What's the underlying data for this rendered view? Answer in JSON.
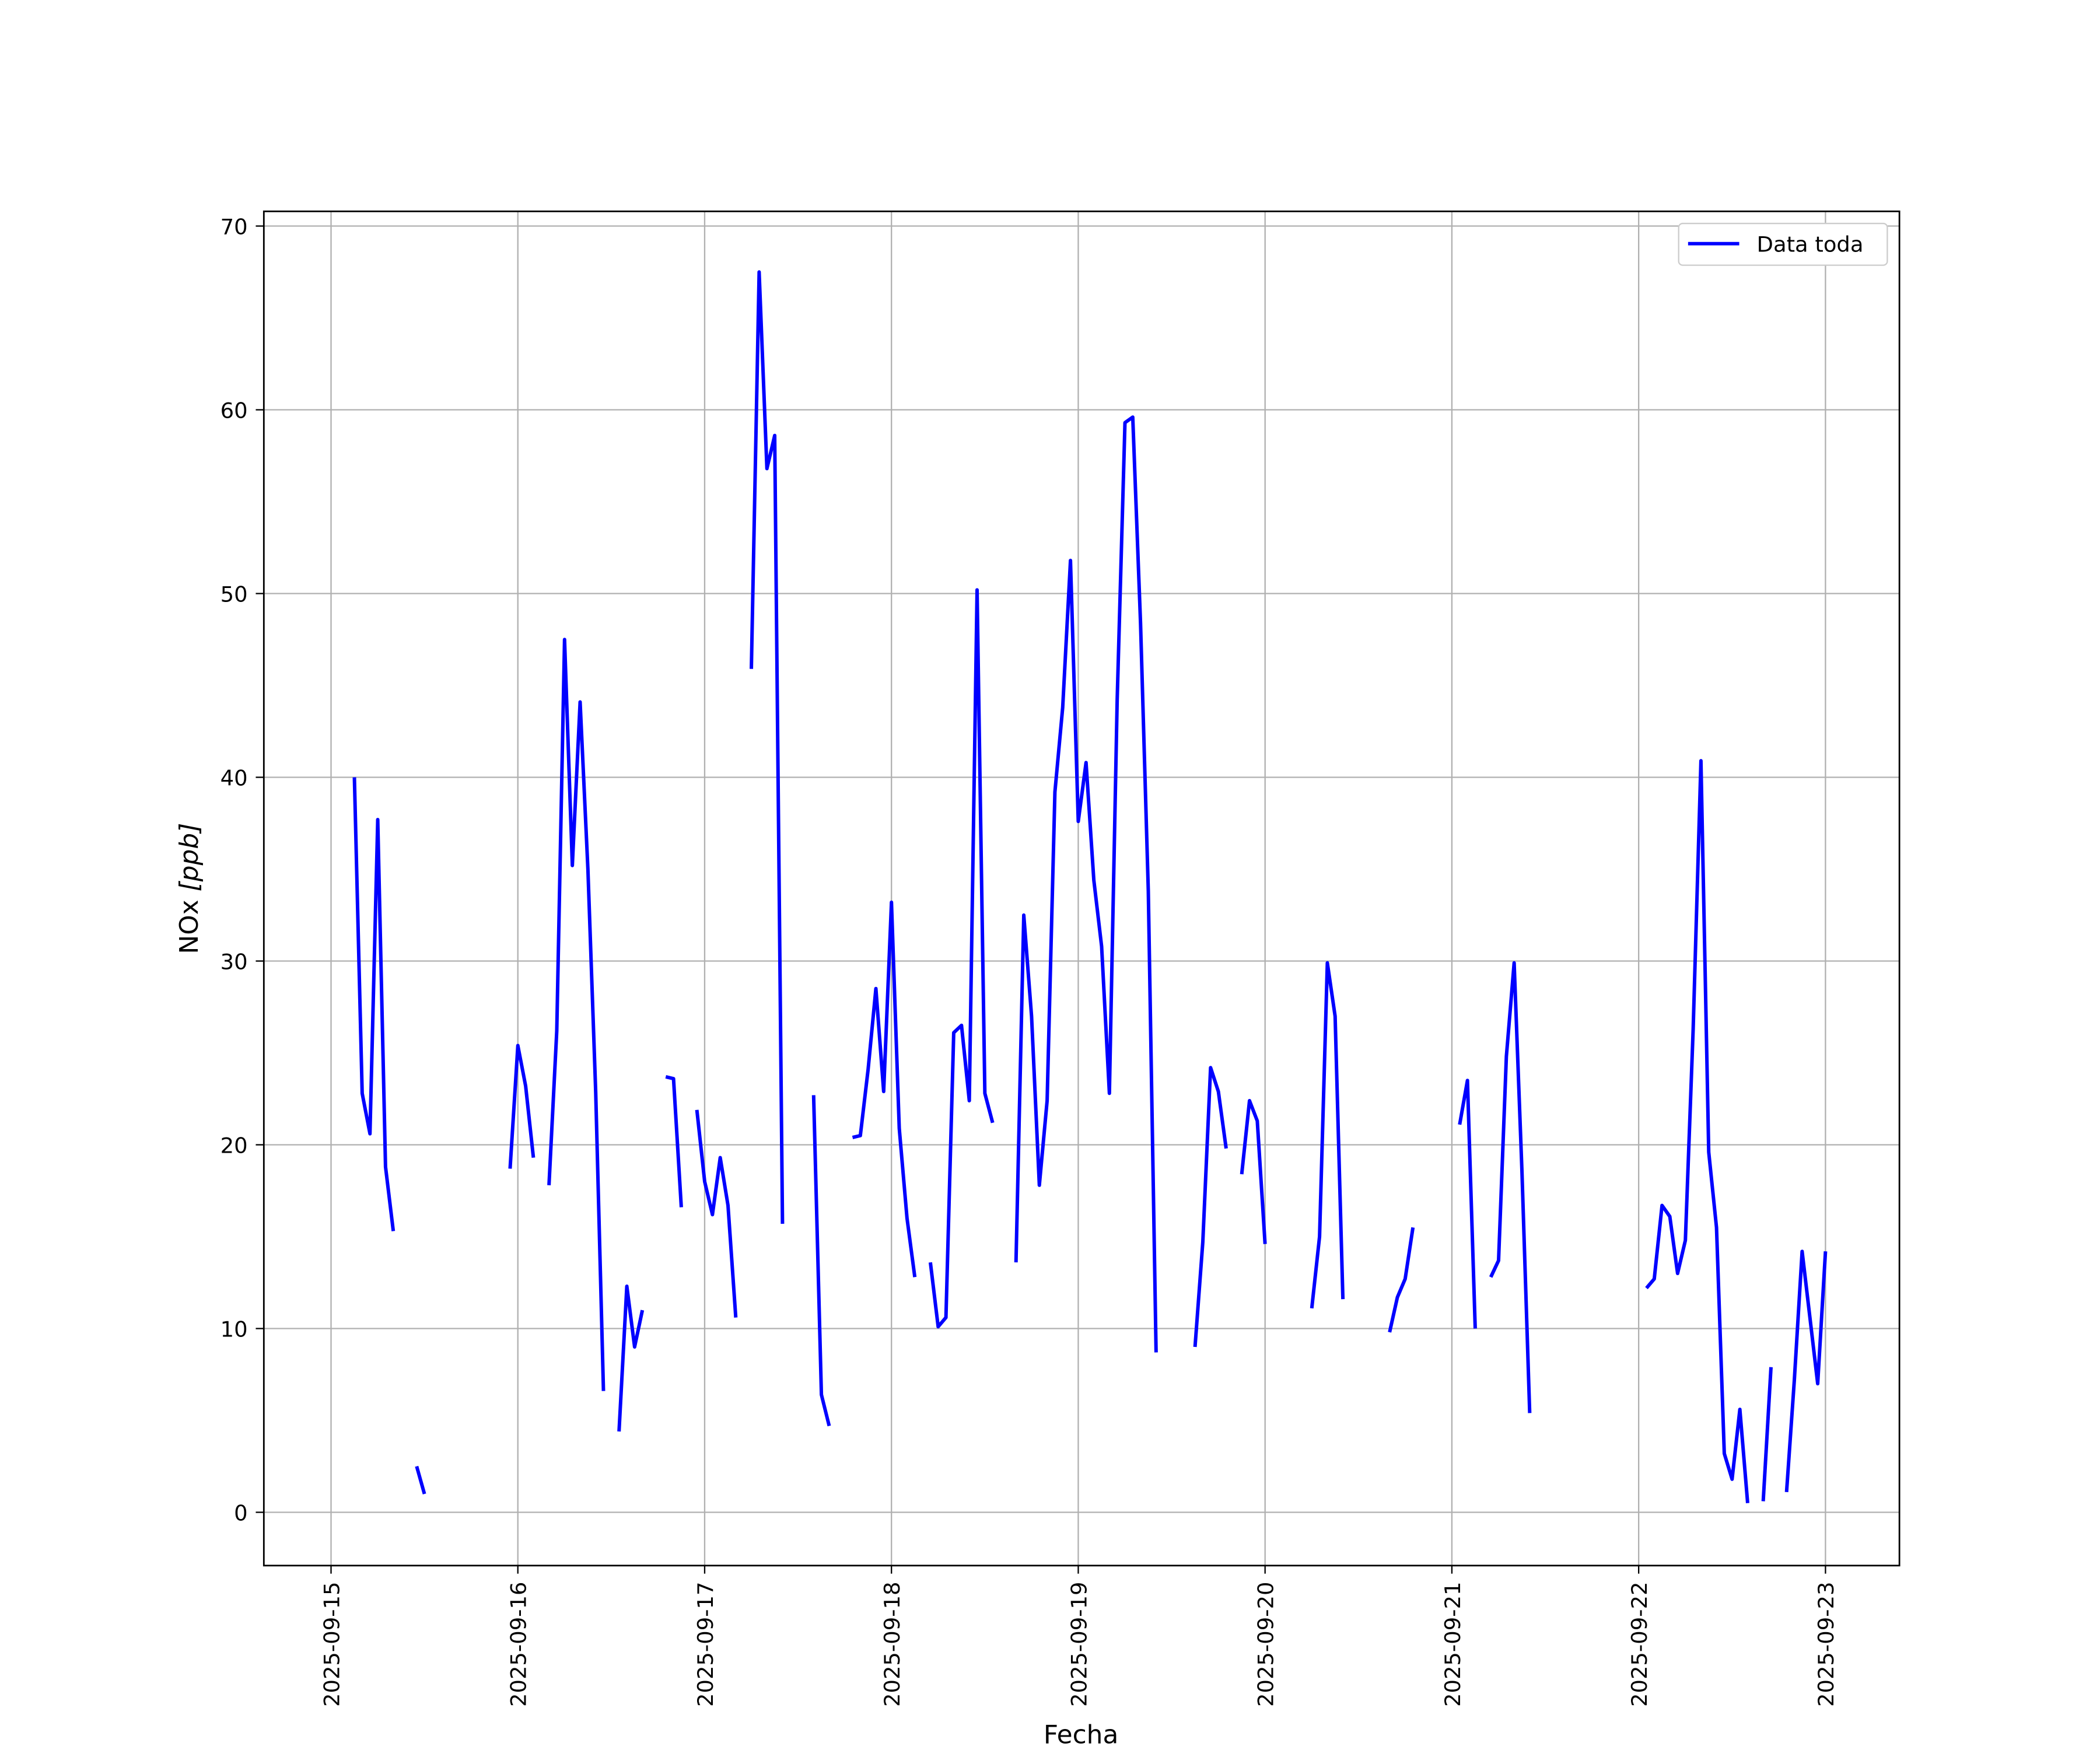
{
  "chart_data": {
    "type": "line",
    "title": "",
    "xlabel": "Fecha",
    "ylabel_plain": "NOx ",
    "ylabel_unit": "[ppb]",
    "xlim": [
      "2025-09-14T15:22",
      "2025-09-23T09:30"
    ],
    "ylim": [
      -2.9,
      70.8
    ],
    "grid": true,
    "legend_placement": "upper-right",
    "x_ticks": [
      "2025-09-15",
      "2025-09-16",
      "2025-09-17",
      "2025-09-18",
      "2025-09-19",
      "2025-09-20",
      "2025-09-21",
      "2025-09-22",
      "2025-09-23"
    ],
    "y_ticks": [
      0,
      10,
      20,
      30,
      40,
      50,
      60,
      70
    ],
    "series": [
      {
        "name": "Data toda",
        "color": "#0000ff",
        "segments": [
          [
            [
              "2025-09-15T03:00",
              40.0
            ],
            [
              "2025-09-15T04:00",
              22.8
            ],
            [
              "2025-09-15T05:00",
              20.6
            ],
            [
              "2025-09-15T06:00",
              37.7
            ],
            [
              "2025-09-15T07:00",
              18.8
            ],
            [
              "2025-09-15T08:00",
              15.3
            ]
          ],
          [
            [
              "2025-09-15T11:00",
              2.5
            ],
            [
              "2025-09-15T12:00",
              1.0
            ]
          ],
          [
            [
              "2025-09-15T23:00",
              18.7
            ],
            [
              "2025-09-16T00:00",
              25.4
            ],
            [
              "2025-09-16T01:00",
              23.2
            ],
            [
              "2025-09-16T02:00",
              19.3
            ]
          ],
          [
            [
              "2025-09-16T04:00",
              17.8
            ],
            [
              "2025-09-16T05:00",
              26.2
            ],
            [
              "2025-09-16T06:00",
              47.5
            ],
            [
              "2025-09-16T07:00",
              35.2
            ],
            [
              "2025-09-16T08:00",
              44.1
            ],
            [
              "2025-09-16T09:00",
              35.0
            ],
            [
              "2025-09-16T10:00",
              22.9
            ],
            [
              "2025-09-16T11:00",
              6.6
            ]
          ],
          [
            [
              "2025-09-16T13:00",
              4.4
            ],
            [
              "2025-09-16T14:00",
              12.3
            ],
            [
              "2025-09-16T15:00",
              9.0
            ],
            [
              "2025-09-16T16:00",
              11.0
            ]
          ],
          [
            [
              "2025-09-16T19:00",
              23.7
            ],
            [
              "2025-09-16T20:00",
              23.6
            ],
            [
              "2025-09-16T21:00",
              16.6
            ]
          ],
          [
            [
              "2025-09-16T23:00",
              21.9
            ],
            [
              "2025-09-17T00:00",
              18.0
            ],
            [
              "2025-09-17T01:00",
              16.2
            ],
            [
              "2025-09-17T02:00",
              19.3
            ],
            [
              "2025-09-17T03:00",
              16.7
            ],
            [
              "2025-09-17T04:00",
              10.6
            ]
          ],
          [
            [
              "2025-09-17T06:00",
              45.9
            ],
            [
              "2025-09-17T07:00",
              67.5
            ],
            [
              "2025-09-17T08:00",
              56.8
            ],
            [
              "2025-09-17T09:00",
              58.6
            ],
            [
              "2025-09-17T10:00",
              15.7
            ]
          ],
          [
            [
              "2025-09-17T14:00",
              22.7
            ],
            [
              "2025-09-17T15:00",
              6.4
            ],
            [
              "2025-09-17T16:00",
              4.7
            ]
          ],
          [
            [
              "2025-09-17T19:00",
              20.4
            ],
            [
              "2025-09-17T20:00",
              20.5
            ],
            [
              "2025-09-17T21:00",
              24.1
            ],
            [
              "2025-09-17T22:00",
              28.5
            ],
            [
              "2025-09-17T23:00",
              22.9
            ],
            [
              "2025-09-18T00:00",
              33.2
            ],
            [
              "2025-09-18T01:00",
              20.9
            ],
            [
              "2025-09-18T02:00",
              16.0
            ],
            [
              "2025-09-18T03:00",
              12.8
            ]
          ],
          [
            [
              "2025-09-18T05:00",
              13.6
            ],
            [
              "2025-09-18T06:00",
              10.1
            ],
            [
              "2025-09-18T07:00",
              10.6
            ],
            [
              "2025-09-18T08:00",
              26.1
            ],
            [
              "2025-09-18T09:00",
              26.5
            ],
            [
              "2025-09-18T10:00",
              22.4
            ],
            [
              "2025-09-18T11:00",
              50.2
            ],
            [
              "2025-09-18T12:00",
              22.8
            ],
            [
              "2025-09-18T13:00",
              21.2
            ]
          ],
          [
            [
              "2025-09-18T16:00",
              13.6
            ],
            [
              "2025-09-18T17:00",
              32.5
            ],
            [
              "2025-09-18T18:00",
              27.0
            ],
            [
              "2025-09-18T19:00",
              17.8
            ],
            [
              "2025-09-18T20:00",
              22.4
            ],
            [
              "2025-09-18T21:00",
              39.2
            ],
            [
              "2025-09-18T22:00",
              43.8
            ],
            [
              "2025-09-18T23:00",
              51.8
            ],
            [
              "2025-09-19T00:00",
              37.6
            ],
            [
              "2025-09-19T01:00",
              40.8
            ],
            [
              "2025-09-19T02:00",
              34.4
            ],
            [
              "2025-09-19T03:00",
              30.8
            ],
            [
              "2025-09-19T04:00",
              22.8
            ],
            [
              "2025-09-19T05:00",
              44.2
            ],
            [
              "2025-09-19T06:00",
              59.3
            ],
            [
              "2025-09-19T07:00",
              59.6
            ],
            [
              "2025-09-19T08:00",
              48.4
            ],
            [
              "2025-09-19T09:00",
              33.8
            ],
            [
              "2025-09-19T10:00",
              8.7
            ]
          ],
          [
            [
              "2025-09-19T15:00",
              9.0
            ],
            [
              "2025-09-19T16:00",
              14.7
            ],
            [
              "2025-09-19T17:00",
              24.2
            ],
            [
              "2025-09-19T18:00",
              22.9
            ],
            [
              "2025-09-19T19:00",
              19.8
            ]
          ],
          [
            [
              "2025-09-19T21:00",
              18.4
            ],
            [
              "2025-09-19T22:00",
              22.4
            ],
            [
              "2025-09-19T23:00",
              21.3
            ],
            [
              "2025-09-20T00:00",
              14.6
            ]
          ],
          [
            [
              "2025-09-20T06:00",
              11.1
            ],
            [
              "2025-09-20T07:00",
              15.0
            ],
            [
              "2025-09-20T08:00",
              29.9
            ],
            [
              "2025-09-20T09:00",
              27.0
            ],
            [
              "2025-09-20T10:00",
              11.6
            ]
          ],
          [
            [
              "2025-09-20T16:00",
              9.8
            ],
            [
              "2025-09-20T17:00",
              11.7
            ],
            [
              "2025-09-20T18:00",
              12.7
            ],
            [
              "2025-09-20T19:00",
              15.5
            ]
          ],
          [
            [
              "2025-09-21T01:00",
              21.1
            ],
            [
              "2025-09-21T02:00",
              23.5
            ],
            [
              "2025-09-21T03:00",
              10.0
            ]
          ],
          [
            [
              "2025-09-21T05:00",
              12.8
            ],
            [
              "2025-09-21T06:00",
              13.7
            ],
            [
              "2025-09-21T07:00",
              24.8
            ],
            [
              "2025-09-21T08:00",
              29.9
            ],
            [
              "2025-09-21T09:00",
              18.6
            ],
            [
              "2025-09-21T10:00",
              5.4
            ]
          ],
          [
            [
              "2025-09-22T01:00",
              12.2
            ],
            [
              "2025-09-22T02:00",
              12.7
            ],
            [
              "2025-09-22T03:00",
              16.7
            ],
            [
              "2025-09-22T04:00",
              16.1
            ],
            [
              "2025-09-22T05:00",
              13.0
            ],
            [
              "2025-09-22T06:00",
              14.8
            ],
            [
              "2025-09-22T07:00",
              26.3
            ],
            [
              "2025-09-22T08:00",
              40.9
            ],
            [
              "2025-09-22T09:00",
              19.6
            ],
            [
              "2025-09-22T10:00",
              15.5
            ],
            [
              "2025-09-22T11:00",
              3.2
            ],
            [
              "2025-09-22T12:00",
              1.8
            ],
            [
              "2025-09-22T13:00",
              5.6
            ],
            [
              "2025-09-22T14:00",
              0.5
            ]
          ],
          [
            [
              "2025-09-22T16:00",
              0.6
            ],
            [
              "2025-09-22T17:00",
              7.9
            ]
          ],
          [
            [
              "2025-09-22T19:00",
              1.1
            ],
            [
              "2025-09-22T20:00",
              7.2
            ],
            [
              "2025-09-22T21:00",
              14.2
            ],
            [
              "2025-09-22T22:00",
              10.6
            ],
            [
              "2025-09-22T23:00",
              7.0
            ],
            [
              "2025-09-23T00:00",
              14.2
            ]
          ]
        ]
      }
    ]
  }
}
